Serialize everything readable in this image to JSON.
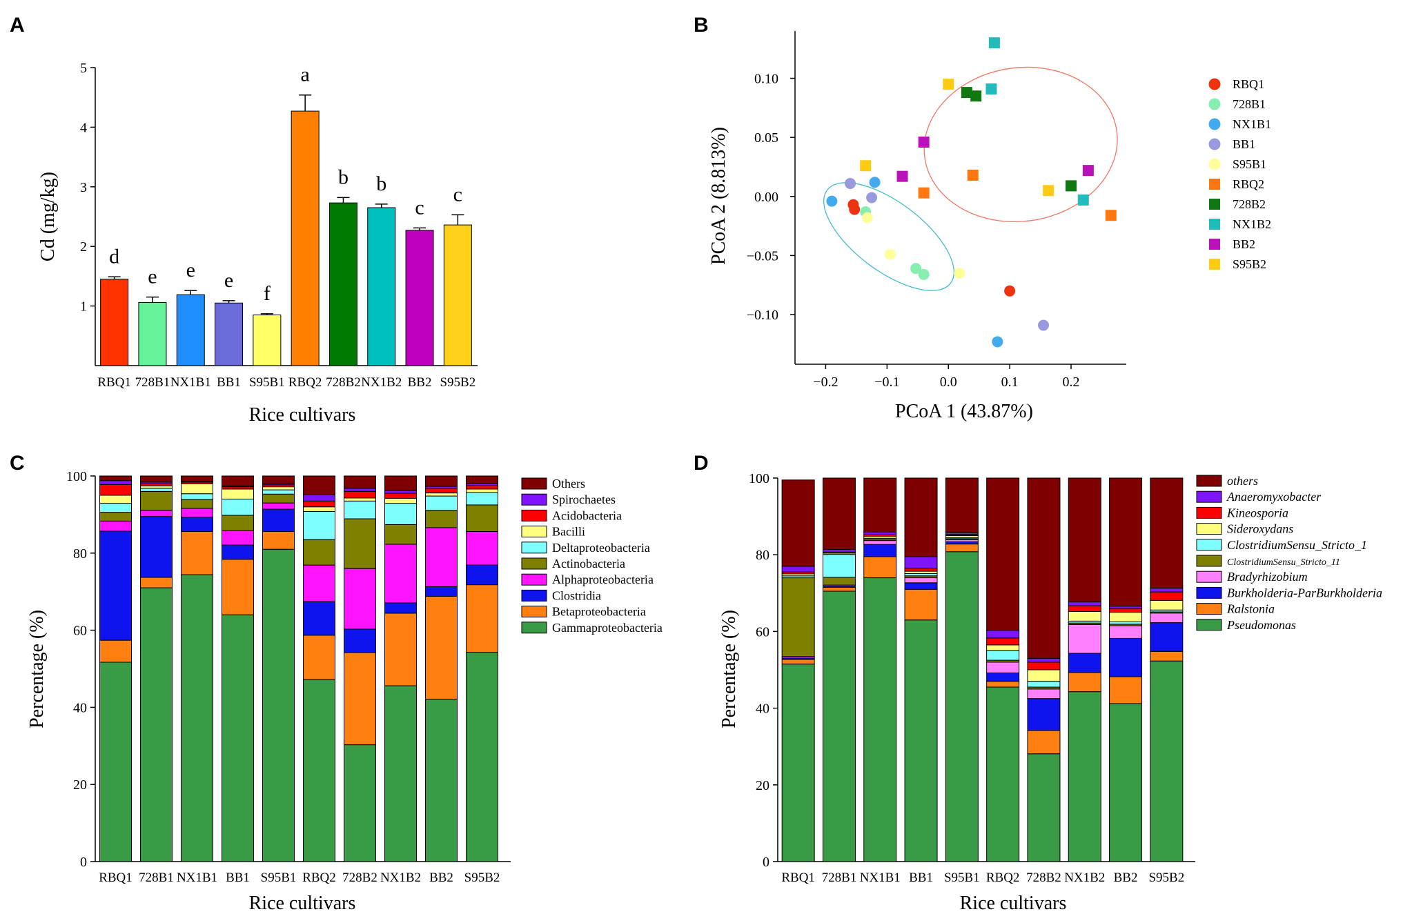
{
  "colors": {
    "cultivars": [
      "#ff3300",
      "#66f299",
      "#1f8fff",
      "#6b6bd9",
      "#ffff66",
      "#ff8000",
      "#007a00",
      "#00bfbf",
      "#bf00bf",
      "#ffd11a"
    ],
    "pcoa": {
      "RBQ1": "#ee3311",
      "728B1": "#88eeb0",
      "NX1B1": "#44aaee",
      "BB1": "#9999dd",
      "S95B1": "#ffff99",
      "RBQ2": "#ff7711",
      "728B2": "#117711",
      "NX1B2": "#22bbbb",
      "BB2": "#bb11bb",
      "S95B2": "#ffcc11"
    },
    "ellipse_group1": "#44bbcc",
    "ellipse_group2": "#ee7766",
    "classC": [
      "#3a9b47",
      "#ff7f11",
      "#0f14ee",
      "#ff14ff",
      "#7f7f00",
      "#7fffff",
      "#ffff7f",
      "#ff0000",
      "#7f14ff",
      "#7f0000"
    ],
    "genusD": [
      "#3a9b47",
      "#ff7f11",
      "#0f14ee",
      "#ff7fff",
      "#7f7f00",
      "#7fffff",
      "#ffff7f",
      "#ff0000",
      "#7f14ff",
      "#7f0000"
    ]
  },
  "chart_data": [
    {
      "panel": "A",
      "type": "bar",
      "categories": [
        "RBQ1",
        "728B1",
        "NX1B1",
        "BB1",
        "S95B1",
        "RBQ2",
        "728B2",
        "NX1B2",
        "BB2",
        "S95B2"
      ],
      "values": [
        1.45,
        1.06,
        1.19,
        1.05,
        0.85,
        4.27,
        2.73,
        2.65,
        2.27,
        2.36
      ],
      "errors": [
        0.04,
        0.09,
        0.07,
        0.04,
        0.02,
        0.27,
        0.09,
        0.06,
        0.04,
        0.17
      ],
      "significance": [
        "d",
        "e",
        "e",
        "e",
        "f",
        "a",
        "b",
        "b",
        "c",
        "c"
      ],
      "xlabel": "Rice cultivars",
      "ylabel": "Cd (mg/kg)",
      "ylim": [
        0,
        5
      ],
      "yticks": [
        "1",
        "2",
        "3",
        "4",
        "5"
      ]
    },
    {
      "panel": "B",
      "type": "scatter",
      "xlabel": "PCoA 1 (43.87%)",
      "ylabel": "PCoA 2 (8.813%)",
      "xlim": [
        -0.25,
        0.29
      ],
      "ylim": [
        -0.142,
        0.14
      ],
      "xticks": [
        -0.2,
        -0.1,
        0.0,
        0.1,
        0.2
      ],
      "xtick_labels": [
        "−0.2",
        "−0.1",
        "0.0",
        "0.1",
        "0.2"
      ],
      "yticks": [
        -0.1,
        -0.05,
        0.0,
        0.05,
        0.1
      ],
      "ytick_labels": [
        "−0.10",
        "−0.05",
        "0.00",
        "0.05",
        "0.10"
      ],
      "legend": [
        "RBQ1",
        "728B1",
        "NX1B1",
        "BB1",
        "S95B1",
        "RBQ2",
        "728B2",
        "NX1B2",
        "BB2",
        "S95B2"
      ],
      "legend_shapes": [
        "circle",
        "circle",
        "circle",
        "circle",
        "circle",
        "square",
        "square",
        "square",
        "square",
        "square"
      ],
      "series": [
        {
          "name": "RBQ1",
          "shape": "circle",
          "points": [
            [
              -0.155,
              -0.007
            ],
            [
              -0.153,
              -0.011
            ],
            [
              0.1,
              -0.08
            ]
          ]
        },
        {
          "name": "728B1",
          "shape": "circle",
          "points": [
            [
              -0.135,
              -0.013
            ],
            [
              -0.053,
              -0.061
            ],
            [
              -0.04,
              -0.066
            ]
          ]
        },
        {
          "name": "NX1B1",
          "shape": "circle",
          "points": [
            [
              -0.19,
              -0.004
            ],
            [
              -0.12,
              0.012
            ],
            [
              0.08,
              -0.123
            ]
          ]
        },
        {
          "name": "BB1",
          "shape": "circle",
          "points": [
            [
              -0.16,
              0.011
            ],
            [
              -0.125,
              -0.001
            ],
            [
              0.155,
              -0.109
            ]
          ]
        },
        {
          "name": "S95B1",
          "shape": "circle",
          "points": [
            [
              -0.132,
              -0.018
            ],
            [
              -0.095,
              -0.049
            ],
            [
              0.018,
              -0.065
            ]
          ]
        },
        {
          "name": "RBQ2",
          "shape": "square",
          "points": [
            [
              -0.04,
              0.003
            ],
            [
              0.04,
              0.018
            ],
            [
              0.265,
              -0.016
            ]
          ]
        },
        {
          "name": "728B2",
          "shape": "square",
          "points": [
            [
              0.03,
              0.088
            ],
            [
              0.045,
              0.085
            ],
            [
              0.2,
              0.009
            ]
          ]
        },
        {
          "name": "NX1B2",
          "shape": "square",
          "points": [
            [
              0.075,
              0.13
            ],
            [
              0.07,
              0.091
            ],
            [
              0.22,
              -0.003
            ]
          ]
        },
        {
          "name": "BB2",
          "shape": "square",
          "points": [
            [
              -0.04,
              0.046
            ],
            [
              -0.075,
              0.017
            ],
            [
              0.228,
              0.022
            ]
          ]
        },
        {
          "name": "S95B2",
          "shape": "square",
          "points": [
            [
              -0.135,
              0.026
            ],
            [
              0.0,
              0.095
            ],
            [
              0.163,
              0.005
            ]
          ]
        }
      ],
      "ellipses": [
        {
          "group": "group1",
          "center": [
            -0.097,
            -0.034
          ],
          "semi_axes": [
            0.126,
            0.029
          ],
          "angle_deg": 37
        },
        {
          "group": "group2",
          "center": [
            0.118,
            0.044
          ],
          "semi_axes": [
            0.158,
            0.065
          ],
          "angle_deg": -8
        }
      ]
    },
    {
      "panel": "C",
      "type": "bar",
      "stacked": true,
      "categories": [
        "RBQ1",
        "728B1",
        "NX1B1",
        "BB1",
        "S95B1",
        "RBQ2",
        "728B2",
        "NX1B2",
        "BB2",
        "S95B2"
      ],
      "xlabel": "Rice cultivars",
      "ylabel": "Percentage (%)",
      "ylim": [
        0,
        100
      ],
      "yticks": [
        "0",
        "20",
        "40",
        "60",
        "80",
        "100"
      ],
      "legend": [
        "Others",
        "Spirochaetes",
        "Acidobacteria",
        "Bacilli",
        "Deltaproteobacteria",
        "Actinobacteria",
        "Alphaproteobacteria",
        "Clostridia",
        "Betaproteobacteria",
        "Gammaproteobacteria"
      ],
      "series": [
        {
          "name": "Gammaproteobacteria",
          "values": [
            51.7,
            71,
            74.4,
            64,
            81,
            47.2,
            30.3,
            45.6,
            42.1,
            54.3
          ]
        },
        {
          "name": "Betaproteobacteria",
          "values": [
            5.7,
            2.7,
            11.2,
            14.4,
            4.6,
            11.5,
            23.9,
            18.8,
            26.7,
            17.5
          ]
        },
        {
          "name": "Clostridia",
          "values": [
            28.3,
            15.8,
            3.7,
            3.7,
            5.8,
            8.7,
            6.1,
            2.7,
            2.5,
            5.1
          ]
        },
        {
          "name": "Alphaproteobacteria",
          "values": [
            2.6,
            1.6,
            2.3,
            3.7,
            1.6,
            9.5,
            15.7,
            15.2,
            15.3,
            8.7
          ]
        },
        {
          "name": "Actinobacteria",
          "values": [
            2.3,
            4.9,
            2.3,
            4.0,
            2.3,
            6.6,
            12.9,
            5.1,
            4.5,
            6.9
          ]
        },
        {
          "name": "Deltaproteobacteria",
          "values": [
            2.3,
            0.8,
            1.5,
            4.2,
            1.1,
            7.3,
            4.6,
            5.5,
            3.7,
            3.2
          ]
        },
        {
          "name": "Bacilli",
          "values": [
            2.1,
            0.6,
            2.6,
            2.6,
            0.8,
            1.2,
            0.8,
            1.3,
            0.8,
            0.9
          ]
        },
        {
          "name": "Acidobacteria",
          "values": [
            2.8,
            0.6,
            0.4,
            0.6,
            0.5,
            1.5,
            1.7,
            1.3,
            1.2,
            0.9
          ]
        },
        {
          "name": "Spirochaetes",
          "values": [
            1.0,
            0.4,
            0.2,
            0.2,
            0.3,
            1.6,
            0.8,
            0.7,
            0.5,
            0.5
          ]
        },
        {
          "name": "Others",
          "values": [
            1.2,
            1.6,
            1.4,
            2.6,
            2.0,
            4.9,
            3.2,
            3.8,
            2.7,
            2.0
          ]
        }
      ]
    },
    {
      "panel": "D",
      "type": "bar",
      "stacked": true,
      "categories": [
        "RBQ1",
        "728B1",
        "NX1B1",
        "BB1",
        "S95B1",
        "RBQ2",
        "728B2",
        "NX1B2",
        "BB2",
        "S95B2"
      ],
      "xlabel": "Rice cultivars",
      "ylabel": "Percentage (%)",
      "ylim": [
        0,
        100
      ],
      "yticks": [
        "0",
        "20",
        "40",
        "60",
        "80",
        "100"
      ],
      "legend": [
        "others",
        "Anaeromyxobacter",
        "Kineosporia",
        "Sideroxydans",
        "ClostridiumSensu_Stricto_1",
        "ClostridiumSensu_Stricto_11",
        "Bradyrhizobium",
        "Burkholderia-ParBurkholderia",
        "Ralstonia",
        "Pseudomonas"
      ],
      "series": [
        {
          "name": "Pseudomonas",
          "values": [
            51.5,
            70.5,
            74,
            63,
            80.8,
            45.5,
            28.1,
            44.3,
            41.2,
            52.3
          ]
        },
        {
          "name": "Ralstonia",
          "values": [
            1.2,
            1.0,
            5.5,
            8.0,
            2.0,
            1.5,
            6.1,
            5.0,
            7.0,
            2.5
          ]
        },
        {
          "name": "Burkholderia-ParBurkholderia",
          "values": [
            0.4,
            0.3,
            3.2,
            1.7,
            0.6,
            2.2,
            8.3,
            5.0,
            10.0,
            7.5
          ]
        },
        {
          "name": "Bradyrhizobium",
          "values": [
            0.4,
            0.3,
            1.0,
            1.3,
            0.5,
            2.8,
            2.5,
            7.5,
            3.3,
            2.5
          ]
        },
        {
          "name": "ClostridiumSensu_Stricto_11",
          "values": [
            20.5,
            2.0,
            0.3,
            0.5,
            0.3,
            0.5,
            0.5,
            0.4,
            0.4,
            0.3
          ]
        },
        {
          "name": "ClostridiumSensu_Stricto_1",
          "values": [
            0.5,
            6.0,
            0.3,
            0.6,
            0.3,
            2.5,
            1.5,
            0.5,
            0.6,
            0.5
          ]
        },
        {
          "name": "Sideroxydans",
          "values": [
            0.5,
            0.3,
            0.5,
            0.6,
            0.5,
            1.5,
            3.0,
            2.5,
            2.5,
            2.5
          ]
        },
        {
          "name": "Kineosporia",
          "values": [
            0.5,
            0.3,
            0.4,
            0.8,
            0.3,
            1.8,
            2.0,
            1.5,
            1.0,
            2.2
          ]
        },
        {
          "name": "Anaeromyxobacter",
          "values": [
            1.5,
            0.7,
            0.7,
            3.0,
            0.4,
            2.0,
            1.0,
            1.0,
            0.6,
            1.0
          ]
        },
        {
          "name": "others",
          "values": [
            22.5,
            18.6,
            14.1,
            20.5,
            14.3,
            39.7,
            47.0,
            32.3,
            33.4,
            28.7
          ]
        }
      ]
    }
  ]
}
